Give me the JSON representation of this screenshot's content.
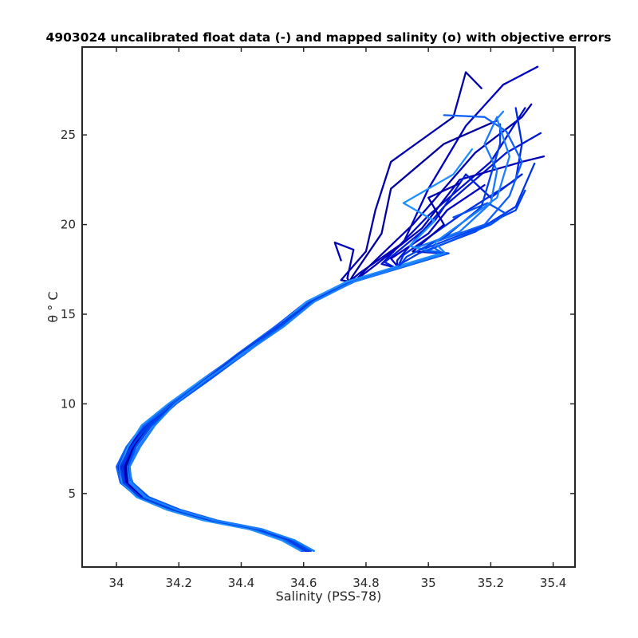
{
  "chart_data": {
    "type": "line",
    "title": "4903024 uncalibrated float data (-) and mapped salinity (o) with objective errors",
    "xlabel": "Salinity (PSS-78)",
    "ylabel": "θ ° C",
    "xlim": [
      33.89,
      35.47
    ],
    "ylim": [
      0.9,
      29.9
    ],
    "xticks": [
      34,
      34.2,
      34.4,
      34.6,
      34.8,
      35,
      35.2,
      35.4
    ],
    "xtick_labels": [
      "34",
      "34.2",
      "34.4",
      "34.6",
      "34.8",
      "35",
      "35.2",
      "35.4"
    ],
    "yticks": [
      5,
      10,
      15,
      20,
      25
    ],
    "ytick_labels": [
      "5",
      "10",
      "15",
      "20",
      "25"
    ],
    "grid": false,
    "legend": "none",
    "colors": {
      "early_profiles": "#0000b0",
      "mid_profiles": "#0033e0",
      "late_profiles": "#1a8cff"
    },
    "core_profile": [
      {
        "s": 34.61,
        "t": 1.8
      },
      {
        "s": 34.55,
        "t": 2.4
      },
      {
        "s": 34.45,
        "t": 3.0
      },
      {
        "s": 34.3,
        "t": 3.5
      },
      {
        "s": 34.18,
        "t": 4.1
      },
      {
        "s": 34.08,
        "t": 4.8
      },
      {
        "s": 34.03,
        "t": 5.6
      },
      {
        "s": 34.02,
        "t": 6.5
      },
      {
        "s": 34.05,
        "t": 7.6
      },
      {
        "s": 34.1,
        "t": 8.8
      },
      {
        "s": 34.18,
        "t": 10.0
      },
      {
        "s": 34.28,
        "t": 11.3
      },
      {
        "s": 34.4,
        "t": 12.8
      },
      {
        "s": 34.52,
        "t": 14.3
      },
      {
        "s": 34.62,
        "t": 15.7
      },
      {
        "s": 34.75,
        "t": 16.8
      },
      {
        "s": 34.9,
        "t": 17.6
      },
      {
        "s": 35.05,
        "t": 18.4
      },
      {
        "s": 35.18,
        "t": 19.3
      },
      {
        "s": 35.26,
        "t": 20.3
      }
    ],
    "series": [
      {
        "color": "#0000a8",
        "offset": 0.0,
        "upper": [
          {
            "s": 34.72,
            "t": 16.9
          },
          {
            "s": 34.8,
            "t": 18.5
          },
          {
            "s": 34.83,
            "t": 20.8
          },
          {
            "s": 34.88,
            "t": 23.5
          },
          {
            "s": 35.08,
            "t": 26.0
          },
          {
            "s": 35.12,
            "t": 28.5
          },
          {
            "s": 35.17,
            "t": 27.6
          }
        ]
      },
      {
        "color": "#0000b8",
        "offset": 0.006,
        "upper": [
          {
            "s": 34.74,
            "t": 17.0
          },
          {
            "s": 34.76,
            "t": 18.6
          },
          {
            "s": 34.7,
            "t": 19.0
          },
          {
            "s": 34.72,
            "t": 18.0
          }
        ]
      },
      {
        "color": "#0000c0",
        "offset": -0.005,
        "upper": [
          {
            "s": 34.78,
            "t": 17.3
          },
          {
            "s": 34.92,
            "t": 19.0
          },
          {
            "s": 35.0,
            "t": 22.0
          },
          {
            "s": 35.12,
            "t": 25.5
          },
          {
            "s": 35.24,
            "t": 27.8
          },
          {
            "s": 35.35,
            "t": 28.8
          }
        ]
      },
      {
        "color": "#0000b0",
        "offset": 0.01,
        "upper": [
          {
            "s": 34.8,
            "t": 17.5
          },
          {
            "s": 34.95,
            "t": 20.0
          },
          {
            "s": 35.15,
            "t": 24.0
          },
          {
            "s": 35.3,
            "t": 26.0
          },
          {
            "s": 35.33,
            "t": 26.7
          }
        ]
      },
      {
        "color": "#0010c8",
        "offset": -0.008,
        "upper": [
          {
            "s": 34.85,
            "t": 17.8
          },
          {
            "s": 35.0,
            "t": 20.5
          },
          {
            "s": 35.2,
            "t": 23.5
          },
          {
            "s": 35.31,
            "t": 26.5
          }
        ]
      },
      {
        "color": "#0000a0",
        "offset": 0.004,
        "upper": [
          {
            "s": 34.76,
            "t": 17.2
          },
          {
            "s": 34.85,
            "t": 19.5
          },
          {
            "s": 34.88,
            "t": 22.0
          },
          {
            "s": 35.05,
            "t": 24.5
          },
          {
            "s": 35.22,
            "t": 25.8
          }
        ]
      },
      {
        "color": "#0018d0",
        "offset": -0.012,
        "upper": [
          {
            "s": 34.9,
            "t": 18.0
          },
          {
            "s": 35.05,
            "t": 21.0
          },
          {
            "s": 35.25,
            "t": 24.0
          },
          {
            "s": 35.36,
            "t": 25.1
          }
        ]
      },
      {
        "color": "#0000b8",
        "offset": 0.008,
        "upper": [
          {
            "s": 34.82,
            "t": 17.6
          },
          {
            "s": 34.98,
            "t": 19.8
          },
          {
            "s": 35.1,
            "t": 22.5
          },
          {
            "s": 35.3,
            "t": 23.5
          },
          {
            "s": 35.37,
            "t": 23.8
          }
        ]
      },
      {
        "color": "#0020d8",
        "offset": -0.003,
        "upper": [
          {
            "s": 34.86,
            "t": 17.9
          },
          {
            "s": 35.02,
            "t": 20.2
          },
          {
            "s": 35.12,
            "t": 22.8
          },
          {
            "s": 35.2,
            "t": 21.5
          },
          {
            "s": 35.3,
            "t": 22.8
          }
        ]
      },
      {
        "color": "#0000c8",
        "offset": 0.012,
        "upper": [
          {
            "s": 34.88,
            "t": 18.1
          },
          {
            "s": 35.0,
            "t": 19.5
          },
          {
            "s": 35.06,
            "t": 20.8
          },
          {
            "s": 35.18,
            "t": 22.2
          }
        ]
      },
      {
        "color": "#0028e0",
        "offset": -0.01,
        "upper": [
          {
            "s": 34.92,
            "t": 18.3
          },
          {
            "s": 35.1,
            "t": 20.5
          },
          {
            "s": 35.28,
            "t": 22.5
          },
          {
            "s": 35.3,
            "t": 24.5
          },
          {
            "s": 35.28,
            "t": 26.5
          }
        ]
      },
      {
        "color": "#0000b0",
        "offset": 0.002,
        "upper": [
          {
            "s": 34.95,
            "t": 18.5
          },
          {
            "s": 35.05,
            "t": 20.0
          },
          {
            "s": 35.0,
            "t": 21.5
          },
          {
            "s": 35.1,
            "t": 22.3
          }
        ]
      },
      {
        "color": "#0033e8",
        "offset": -0.006,
        "upper": [
          {
            "s": 34.97,
            "t": 18.4
          },
          {
            "s": 35.15,
            "t": 19.6
          },
          {
            "s": 35.28,
            "t": 21.0
          },
          {
            "s": 35.34,
            "t": 23.4
          }
        ]
      },
      {
        "color": "#0040f0",
        "offset": 0.014,
        "upper": [
          {
            "s": 34.98,
            "t": 18.6
          },
          {
            "s": 35.16,
            "t": 19.8
          },
          {
            "s": 35.28,
            "t": 20.8
          },
          {
            "s": 35.31,
            "t": 21.9
          }
        ]
      },
      {
        "color": "#1060f8",
        "offset": -0.014,
        "upper": [
          {
            "s": 35.0,
            "t": 18.9
          },
          {
            "s": 35.18,
            "t": 20.0
          },
          {
            "s": 35.26,
            "t": 21.6
          },
          {
            "s": 35.3,
            "t": 23.5
          },
          {
            "s": 35.25,
            "t": 25.2
          },
          {
            "s": 35.18,
            "t": 26.0
          },
          {
            "s": 35.05,
            "t": 26.1
          }
        ]
      },
      {
        "color": "#1878ff",
        "offset": 0.016,
        "upper": [
          {
            "s": 34.96,
            "t": 18.7
          },
          {
            "s": 35.1,
            "t": 19.6
          },
          {
            "s": 35.2,
            "t": 21.2
          },
          {
            "s": 35.22,
            "t": 23.0
          },
          {
            "s": 35.18,
            "t": 24.5
          },
          {
            "s": 35.22,
            "t": 26.0
          }
        ]
      },
      {
        "color": "#2090ff",
        "offset": -0.016,
        "upper": [
          {
            "s": 34.94,
            "t": 18.8
          },
          {
            "s": 35.02,
            "t": 20.2
          },
          {
            "s": 34.92,
            "t": 21.2
          },
          {
            "s": 35.08,
            "t": 22.8
          },
          {
            "s": 35.14,
            "t": 24.2
          }
        ]
      },
      {
        "color": "#0050f4",
        "offset": 0.018,
        "upper": [
          {
            "s": 34.99,
            "t": 18.5
          },
          {
            "s": 35.2,
            "t": 20.0
          },
          {
            "s": 35.25,
            "t": 20.6
          },
          {
            "s": 35.19,
            "t": 21.2
          },
          {
            "s": 35.08,
            "t": 20.4
          }
        ]
      },
      {
        "color": "#0040e8",
        "offset": -0.002,
        "upper": [
          {
            "s": 34.93,
            "t": 18.2
          },
          {
            "s": 35.06,
            "t": 19.4
          },
          {
            "s": 35.17,
            "t": 21.0
          },
          {
            "s": 35.23,
            "t": 24.5
          },
          {
            "s": 35.23,
            "t": 25.6
          }
        ]
      },
      {
        "color": "#1a80ff",
        "offset": 0.02,
        "upper": [
          {
            "s": 35.02,
            "t": 19.0
          },
          {
            "s": 35.22,
            "t": 21.5
          },
          {
            "s": 35.26,
            "t": 23.8
          },
          {
            "s": 35.22,
            "t": 25.9
          },
          {
            "s": 35.24,
            "t": 26.3
          }
        ]
      }
    ]
  }
}
